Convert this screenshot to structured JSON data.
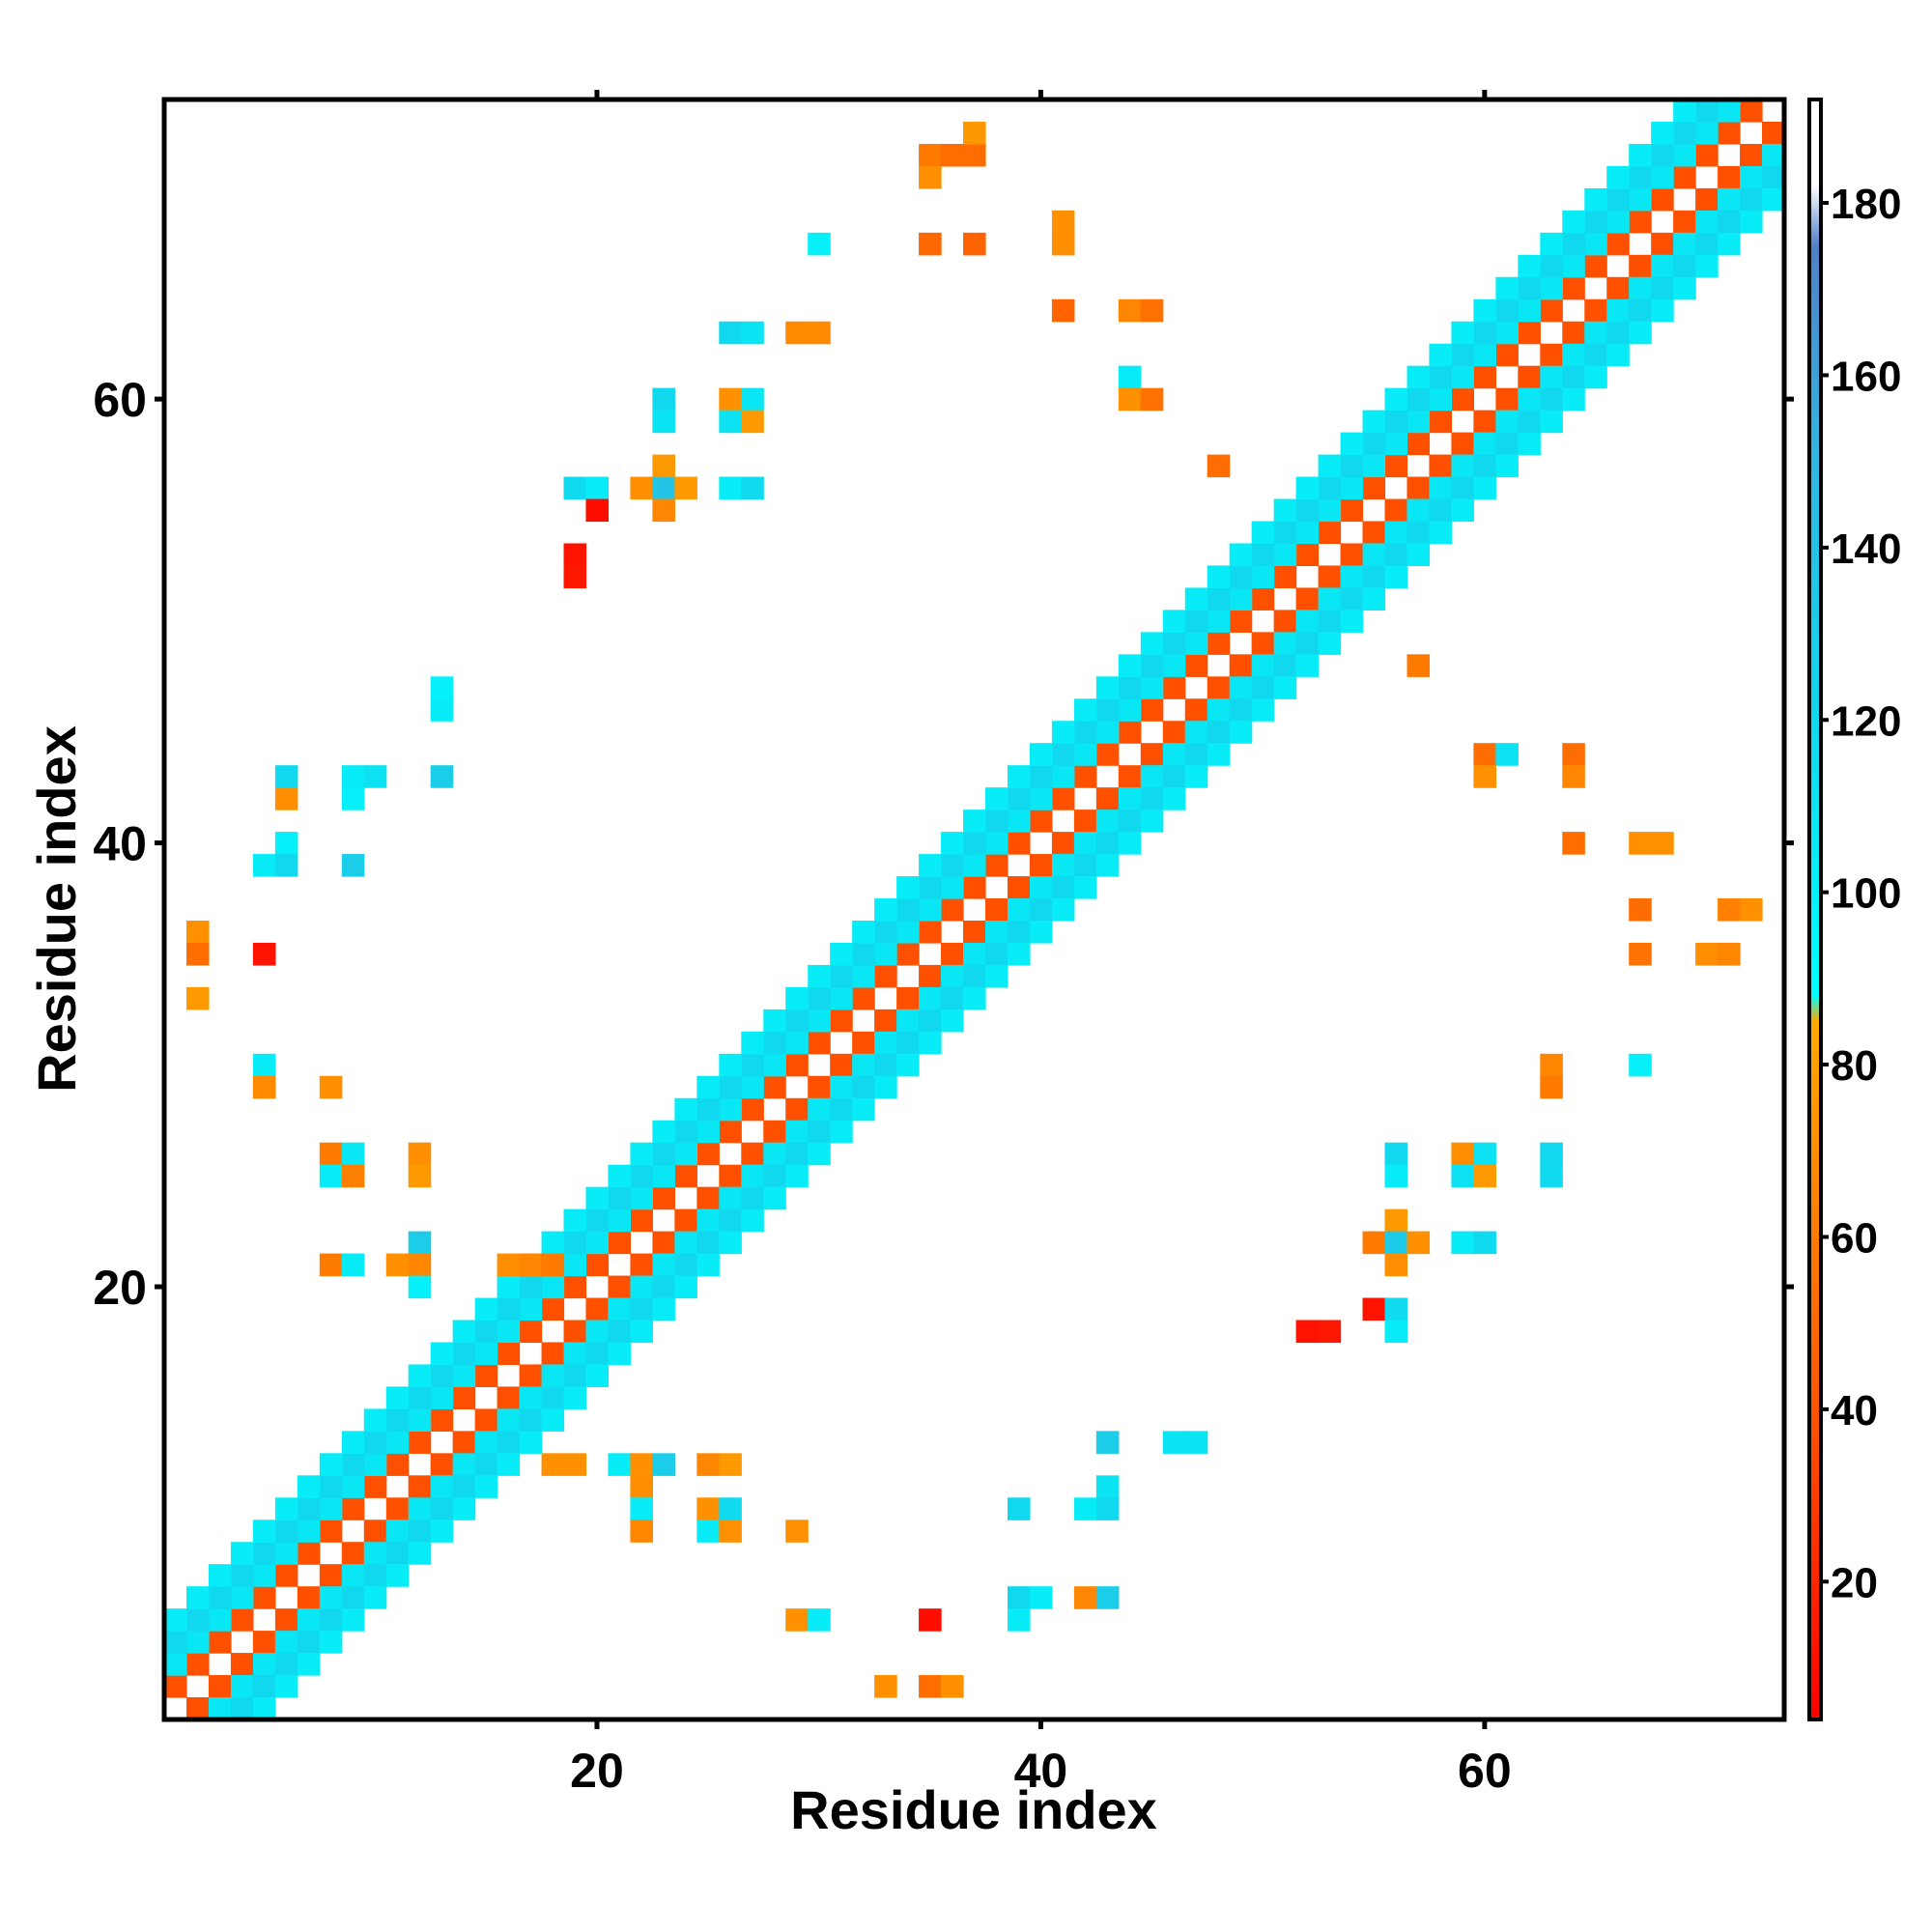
{
  "chart_data": {
    "type": "heatmap",
    "title": "",
    "xlabel": "Residue index",
    "ylabel": "Residue index",
    "xlim": [
      0.5,
      73.5
    ],
    "ylim": [
      0.5,
      73.5
    ],
    "x_ticks": [
      20,
      40,
      60
    ],
    "y_ticks": [
      20,
      40,
      60
    ],
    "colorbar": {
      "range": [
        4,
        192
      ],
      "ticks": [
        20,
        40,
        60,
        80,
        100,
        120,
        140,
        160,
        180
      ],
      "stops": [
        {
          "v": 4,
          "color": "#ff0000"
        },
        {
          "v": 40,
          "color": "#ff5500"
        },
        {
          "v": 85,
          "color": "#ffaa00"
        },
        {
          "v": 88,
          "color": "#00ffff"
        },
        {
          "v": 120,
          "color": "#10d8ee"
        },
        {
          "v": 150,
          "color": "#30b8e0"
        },
        {
          "v": 175,
          "color": "#5080c8"
        },
        {
          "v": 182,
          "color": "#ffffff"
        },
        {
          "v": 192,
          "color": "#ffffff"
        }
      ]
    },
    "band_offsets": [
      {
        "d": 1,
        "value": 38
      },
      {
        "d": 2,
        "value": 108
      },
      {
        "d": 3,
        "value": 120
      },
      {
        "d": 4,
        "value": 104
      }
    ],
    "cells": [
      [
        35,
        71,
        60
      ],
      [
        36,
        71,
        52
      ],
      [
        37,
        71,
        52
      ],
      [
        37,
        72,
        75
      ],
      [
        35,
        70,
        70
      ],
      [
        35,
        67,
        50
      ],
      [
        37,
        67,
        48
      ],
      [
        41,
        67,
        70
      ],
      [
        41,
        68,
        72
      ],
      [
        30,
        67,
        100
      ],
      [
        41,
        64,
        48
      ],
      [
        44,
        64,
        66
      ],
      [
        45,
        64,
        55
      ],
      [
        44,
        61,
        104
      ],
      [
        44,
        60,
        72
      ],
      [
        45,
        60,
        55
      ],
      [
        26,
        63,
        120
      ],
      [
        27,
        63,
        110
      ],
      [
        29,
        63,
        68
      ],
      [
        30,
        63,
        68
      ],
      [
        23,
        60,
        120
      ],
      [
        23,
        59,
        110
      ],
      [
        26,
        60,
        72
      ],
      [
        27,
        60,
        108
      ],
      [
        26,
        59,
        112
      ],
      [
        27,
        59,
        76
      ],
      [
        19,
        56,
        118
      ],
      [
        20,
        56,
        104
      ],
      [
        22,
        56,
        70
      ],
      [
        23,
        56,
        138
      ],
      [
        24,
        56,
        76
      ],
      [
        23,
        57,
        76
      ],
      [
        23,
        55,
        66
      ],
      [
        26,
        56,
        104
      ],
      [
        27,
        56,
        118
      ],
      [
        20,
        55,
        10
      ],
      [
        19,
        53,
        12
      ],
      [
        19,
        52,
        14
      ],
      [
        48,
        57,
        52
      ],
      [
        13,
        47,
        100
      ],
      [
        13,
        46,
        104
      ],
      [
        6,
        43,
        120
      ],
      [
        6,
        42,
        70
      ],
      [
        9,
        43,
        104
      ],
      [
        10,
        43,
        112
      ],
      [
        9,
        42,
        100
      ],
      [
        13,
        43,
        130
      ],
      [
        6,
        40,
        100
      ],
      [
        5,
        39,
        104
      ],
      [
        6,
        39,
        120
      ],
      [
        9,
        39,
        130
      ],
      [
        2,
        36,
        72
      ],
      [
        2,
        35,
        52
      ],
      [
        5,
        35,
        12
      ],
      [
        2,
        33,
        76
      ],
      [
        5,
        30,
        104
      ],
      [
        5,
        29,
        68
      ],
      [
        8,
        29,
        70
      ],
      [
        8,
        26,
        60
      ],
      [
        9,
        26,
        108
      ],
      [
        8,
        25,
        104
      ],
      [
        9,
        25,
        62
      ],
      [
        12,
        26,
        70
      ],
      [
        12,
        25,
        76
      ],
      [
        12,
        22,
        130
      ],
      [
        8,
        21,
        60
      ],
      [
        9,
        21,
        104
      ],
      [
        11,
        21,
        70
      ],
      [
        12,
        21,
        66
      ],
      [
        12,
        20,
        100
      ],
      [
        16,
        21,
        70
      ],
      [
        17,
        21,
        66
      ],
      [
        18,
        21,
        60
      ],
      [
        57,
        48,
        60
      ],
      [
        60,
        44,
        52
      ],
      [
        61,
        44,
        112
      ],
      [
        64,
        44,
        52
      ],
      [
        60,
        43,
        72
      ],
      [
        64,
        43,
        66
      ],
      [
        64,
        40,
        52
      ],
      [
        67,
        40,
        72
      ],
      [
        68,
        40,
        72
      ],
      [
        67,
        37,
        52
      ],
      [
        71,
        37,
        62
      ],
      [
        72,
        37,
        72
      ],
      [
        67,
        35,
        55
      ],
      [
        70,
        35,
        70
      ],
      [
        71,
        35,
        66
      ],
      [
        63,
        30,
        66
      ],
      [
        63,
        29,
        60
      ],
      [
        67,
        30,
        100
      ],
      [
        56,
        26,
        120
      ],
      [
        56,
        25,
        104
      ],
      [
        59,
        26,
        70
      ],
      [
        60,
        26,
        112
      ],
      [
        59,
        25,
        112
      ],
      [
        60,
        25,
        76
      ],
      [
        63,
        26,
        120
      ],
      [
        63,
        25,
        118
      ],
      [
        56,
        23,
        76
      ],
      [
        55,
        22,
        60
      ],
      [
        56,
        22,
        132
      ],
      [
        57,
        22,
        72
      ],
      [
        56,
        21,
        70
      ],
      [
        59,
        22,
        104
      ],
      [
        60,
        22,
        118
      ],
      [
        55,
        19,
        12
      ],
      [
        56,
        19,
        118
      ],
      [
        56,
        18,
        104
      ],
      [
        52,
        18,
        12
      ],
      [
        53,
        18,
        14
      ],
      [
        43,
        13,
        130
      ],
      [
        46,
        13,
        110
      ],
      [
        47,
        13,
        110
      ],
      [
        43,
        11,
        110
      ],
      [
        42,
        10,
        104
      ],
      [
        43,
        10,
        120
      ],
      [
        39,
        10,
        120
      ],
      [
        39,
        6,
        120
      ],
      [
        40,
        6,
        104
      ],
      [
        42,
        6,
        66
      ],
      [
        43,
        6,
        130
      ],
      [
        39,
        5,
        104
      ],
      [
        35,
        5,
        10
      ],
      [
        29,
        5,
        72
      ],
      [
        30,
        5,
        104
      ],
      [
        33,
        2,
        72
      ],
      [
        35,
        2,
        52
      ],
      [
        36,
        2,
        72
      ],
      [
        18,
        12,
        72
      ],
      [
        19,
        12,
        72
      ],
      [
        21,
        12,
        104
      ],
      [
        22,
        12,
        72
      ],
      [
        23,
        12,
        130
      ],
      [
        22,
        11,
        70
      ],
      [
        25,
        12,
        66
      ],
      [
        26,
        12,
        76
      ],
      [
        22,
        10,
        104
      ],
      [
        22,
        9,
        66
      ],
      [
        25,
        10,
        72
      ],
      [
        26,
        10,
        118
      ],
      [
        25,
        9,
        104
      ],
      [
        26,
        9,
        72
      ],
      [
        29,
        9,
        72
      ]
    ]
  }
}
